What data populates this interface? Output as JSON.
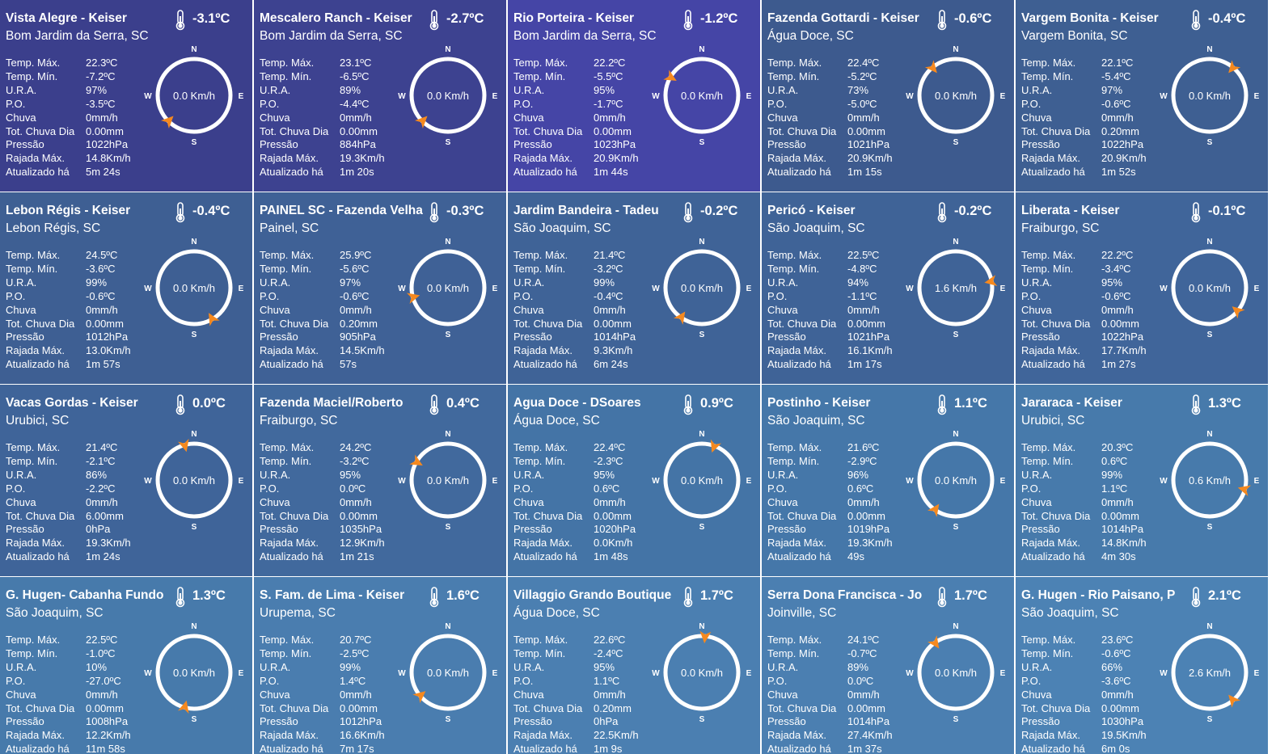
{
  "labels": {
    "temp_max": "Temp. Máx.",
    "temp_min": "Temp. Mín.",
    "ura": "U.R.A.",
    "po": "P.O.",
    "chuva": "Chuva",
    "tot_chuva": "Tot. Chuva Dia",
    "pressao": "Pressão",
    "rajada": "Rajada Máx.",
    "atualizado": "Atualizado há"
  },
  "compass_letters": {
    "n": "N",
    "s": "S",
    "e": "E",
    "w": "W"
  },
  "colors": {
    "arrow": "#f5891f",
    "ring": "#ffffff"
  },
  "stations": [
    {
      "title": "Vista Alegre - Keiser",
      "location": "Bom Jardim da Serra, SC",
      "temp": "-3.1ºC",
      "temp_max": "22.3ºC",
      "temp_min": "-7.2ºC",
      "ura": "97%",
      "po": "-3.5ºC",
      "chuva": "0mm/h",
      "tot_chuva": "0.00mm",
      "pressao": "1022hPa",
      "rajada": "14.8Km/h",
      "atualizado": "5m 24s",
      "wind": "0.0 Km/h",
      "wind_dir_deg": 225,
      "bg": "#3b3f8c"
    },
    {
      "title": "Mescalero Ranch - Keiser",
      "location": "Bom Jardim da Serra, SC",
      "temp": "-2.7ºC",
      "temp_max": "23.1ºC",
      "temp_min": "-6.5ºC",
      "ura": "89%",
      "po": "-4.4ºC",
      "chuva": "0mm/h",
      "tot_chuva": "0.00mm",
      "pressao": "884hPa",
      "rajada": "19.3Km/h",
      "atualizado": "1m 20s",
      "wind": "0.0 Km/h",
      "wind_dir_deg": 225,
      "bg": "#3d4290"
    },
    {
      "title": "Rio Porteira - Keiser",
      "location": "Bom Jardim da Serra, SC",
      "temp": "-1.2ºC",
      "temp_max": "22.2ºC",
      "temp_min": "-5.5ºC",
      "ura": "95%",
      "po": "-1.7ºC",
      "chuva": "0mm/h",
      "tot_chuva": "0.00mm",
      "pressao": "1023hPa",
      "rajada": "20.9Km/h",
      "atualizado": "1m 44s",
      "wind": "0.0 Km/h",
      "wind_dir_deg": 300,
      "bg": "#4545a6"
    },
    {
      "title": "Fazenda Gottardi - Keiser",
      "location": "Água Doce, SC",
      "temp": "-0.6ºC",
      "temp_max": "22.4ºC",
      "temp_min": "-5.2ºC",
      "ura": "73%",
      "po": "-5.0ºC",
      "chuva": "0mm/h",
      "tot_chuva": "0.00mm",
      "pressao": "1021hPa",
      "rajada": "20.9Km/h",
      "atualizado": "1m 15s",
      "wind": "0.0 Km/h",
      "wind_dir_deg": 320,
      "bg": "#3d5a8e"
    },
    {
      "title": "Vargem Bonita - Keiser",
      "location": "Vargem Bonita, SC",
      "temp": "-0.4ºC",
      "temp_max": "22.1ºC",
      "temp_min": "-5.4ºC",
      "ura": "97%",
      "po": "-0.6ºC",
      "chuva": "0mm/h",
      "tot_chuva": "0.20mm",
      "pressao": "1022hPa",
      "rajada": "20.9Km/h",
      "atualizado": "1m 52s",
      "wind": "0.0 Km/h",
      "wind_dir_deg": 40,
      "bg": "#3e5f92"
    },
    {
      "title": "Lebon Régis - Keiser",
      "location": "Lebon Régis, SC",
      "temp": "-0.4ºC",
      "temp_max": "24.5ºC",
      "temp_min": "-3.6ºC",
      "ura": "99%",
      "po": "-0.6ºC",
      "chuva": "0mm/h",
      "tot_chuva": "0.00mm",
      "pressao": "1012hPa",
      "rajada": "13.0Km/h",
      "atualizado": "1m 57s",
      "wind": "0.0 Km/h",
      "wind_dir_deg": 150,
      "bg": "#3e5f93"
    },
    {
      "title": "PAINEL SC - Fazenda Velha",
      "location": "Painel, SC",
      "temp": "-0.3ºC",
      "temp_max": "25.9ºC",
      "temp_min": "-5.6ºC",
      "ura": "97%",
      "po": "-0.6ºC",
      "chuva": "0mm/h",
      "tot_chuva": "0.20mm",
      "pressao": "905hPa",
      "rajada": "14.5Km/h",
      "atualizado": "57s",
      "wind": "0.0 Km/h",
      "wind_dir_deg": 255,
      "bg": "#3f6196"
    },
    {
      "title": "Jardim Bandeira - Tadeu",
      "location": "São Joaquim, SC",
      "temp": "-0.2ºC",
      "temp_max": "21.4ºC",
      "temp_min": "-3.2ºC",
      "ura": "99%",
      "po": "-0.4ºC",
      "chuva": "0mm/h",
      "tot_chuva": "0.00mm",
      "pressao": "1014hPa",
      "rajada": "9.3Km/h",
      "atualizado": "6m 24s",
      "wind": "0.0 Km/h",
      "wind_dir_deg": 215,
      "bg": "#3f6397"
    },
    {
      "title": "Pericó - Keiser",
      "location": "São Joaquim, SC",
      "temp": "-0.2ºC",
      "temp_max": "22.5ºC",
      "temp_min": "-4.8ºC",
      "ura": "94%",
      "po": "-1.1ºC",
      "chuva": "0mm/h",
      "tot_chuva": "0.00mm",
      "pressao": "1021hPa",
      "rajada": "16.1Km/h",
      "atualizado": "1m 17s",
      "wind": "1.6 Km/h",
      "wind_dir_deg": 80,
      "bg": "#3f6397"
    },
    {
      "title": "Liberata - Keiser",
      "location": "Fraiburgo, SC",
      "temp": "-0.1ºC",
      "temp_max": "22.2ºC",
      "temp_min": "-3.4ºC",
      "ura": "95%",
      "po": "-0.6ºC",
      "chuva": "0mm/h",
      "tot_chuva": "0.00mm",
      "pressao": "1022hPa",
      "rajada": "17.7Km/h",
      "atualizado": "1m 27s",
      "wind": "0.0 Km/h",
      "wind_dir_deg": 130,
      "bg": "#40659a"
    },
    {
      "title": "Vacas Gordas - Keiser",
      "location": "Urubici, SC",
      "temp": "0.0ºC",
      "temp_max": "21.4ºC",
      "temp_min": "-2.1ºC",
      "ura": "86%",
      "po": "-2.2ºC",
      "chuva": "0mm/h",
      "tot_chuva": "6.00mm",
      "pressao": "0hPa",
      "rajada": "19.3Km/h",
      "atualizado": "1m 24s",
      "wind": "0.0 Km/h",
      "wind_dir_deg": 345,
      "bg": "#3f6499"
    },
    {
      "title": "Fazenda Maciel/Roberto",
      "location": "Fraiburgo, SC",
      "temp": "0.4ºC",
      "temp_max": "24.2ºC",
      "temp_min": "-3.2ºC",
      "ura": "95%",
      "po": "0.0ºC",
      "chuva": "0mm/h",
      "tot_chuva": "0.00mm",
      "pressao": "1035hPa",
      "rajada": "12.9Km/h",
      "atualizado": "1m 21s",
      "wind": "0.0 Km/h",
      "wind_dir_deg": 300,
      "bg": "#41699d"
    },
    {
      "title": "Agua Doce - DSoares",
      "location": "Água Doce, SC",
      "temp": "0.9ºC",
      "temp_max": "22.4ºC",
      "temp_min": "-2.3ºC",
      "ura": "95%",
      "po": "0.6ºC",
      "chuva": "0mm/h",
      "tot_chuva": "0.00mm",
      "pressao": "1020hPa",
      "rajada": "0.0Km/h",
      "atualizado": "1m 48s",
      "wind": "0.0 Km/h",
      "wind_dir_deg": 20,
      "bg": "#4474a6"
    },
    {
      "title": "Postinho - Keiser",
      "location": "São Joaquim, SC",
      "temp": "1.1ºC",
      "temp_max": "21.6ºC",
      "temp_min": "-2.9ºC",
      "ura": "96%",
      "po": "0.6ºC",
      "chuva": "0mm/h",
      "tot_chuva": "0.00mm",
      "pressao": "1019hPa",
      "rajada": "19.3Km/h",
      "atualizado": "49s",
      "wind": "0.0 Km/h",
      "wind_dir_deg": 215,
      "bg": "#4577a9"
    },
    {
      "title": "Jararaca - Keiser",
      "location": "Urubici, SC",
      "temp": "1.3ºC",
      "temp_max": "20.3ºC",
      "temp_min": "0.6ºC",
      "ura": "99%",
      "po": "1.1ºC",
      "chuva": "0mm/h",
      "tot_chuva": "0.00mm",
      "pressao": "1014hPa",
      "rajada": "14.8Km/h",
      "atualizado": "4m 30s",
      "wind": "0.6 Km/h",
      "wind_dir_deg": 105,
      "bg": "#477aab"
    },
    {
      "title": " G. Hugen- Cabanha Fundo",
      "location": "São Joaquim, SC",
      "temp": "1.3ºC",
      "temp_max": "22.5ºC",
      "temp_min": "-1.0ºC",
      "ura": "10%",
      "po": "-27.0ºC",
      "chuva": "0mm/h",
      "tot_chuva": "0.00mm",
      "pressao": "1008hPa",
      "rajada": "12.2Km/h",
      "atualizado": "11m 58s",
      "wind": "0.0 Km/h",
      "wind_dir_deg": 195,
      "bg": "#477aab"
    },
    {
      "title": "S. Fam. de Lima - Keiser",
      "location": "Urupema, SC",
      "temp": "1.6ºC",
      "temp_max": "20.7ºC",
      "temp_min": "-2.5ºC",
      "ura": "99%",
      "po": "1.4ºC",
      "chuva": "0mm/h",
      "tot_chuva": "0.00mm",
      "pressao": "1012hPa",
      "rajada": "16.6Km/h",
      "atualizado": "7m 17s",
      "wind": "0.0 Km/h",
      "wind_dir_deg": 230,
      "bg": "#4a7daf"
    },
    {
      "title": "Villaggio Grando Boutique",
      "location": "Água Doce, SC",
      "temp": "1.7ºC",
      "temp_max": "22.6ºC",
      "temp_min": "-2.4ºC",
      "ura": "95%",
      "po": "1.1ºC",
      "chuva": "0mm/h",
      "tot_chuva": "0.20mm",
      "pressao": "0hPa",
      "rajada": "22.5Km/h",
      "atualizado": "1m 9s",
      "wind": "0.0 Km/h",
      "wind_dir_deg": 5,
      "bg": "#4b7fb1"
    },
    {
      "title": "Serra Dona Francisca - Jo",
      "location": "Joinville, SC",
      "temp": "1.7ºC",
      "temp_max": "24.1ºC",
      "temp_min": "-0.7ºC",
      "ura": "89%",
      "po": "0.0ºC",
      "chuva": "0mm/h",
      "tot_chuva": "0.00mm",
      "pressao": "1014hPa",
      "rajada": "27.4Km/h",
      "atualizado": "1m 37s",
      "wind": "0.0 Km/h",
      "wind_dir_deg": 325,
      "bg": "#4b7fb1"
    },
    {
      "title": "G. Hugen - Rio Paisano, P",
      "location": "São Joaquim, SC",
      "temp": "2.1ºC",
      "temp_max": "23.6ºC",
      "temp_min": "-0.6ºC",
      "ura": "66%",
      "po": "-3.6ºC",
      "chuva": "0mm/h",
      "tot_chuva": "0.00mm",
      "pressao": "1030hPa",
      "rajada": "19.5Km/h",
      "atualizado": "6m 0s",
      "wind": "2.6 Km/h",
      "wind_dir_deg": 140,
      "bg": "#4c82b4"
    }
  ]
}
